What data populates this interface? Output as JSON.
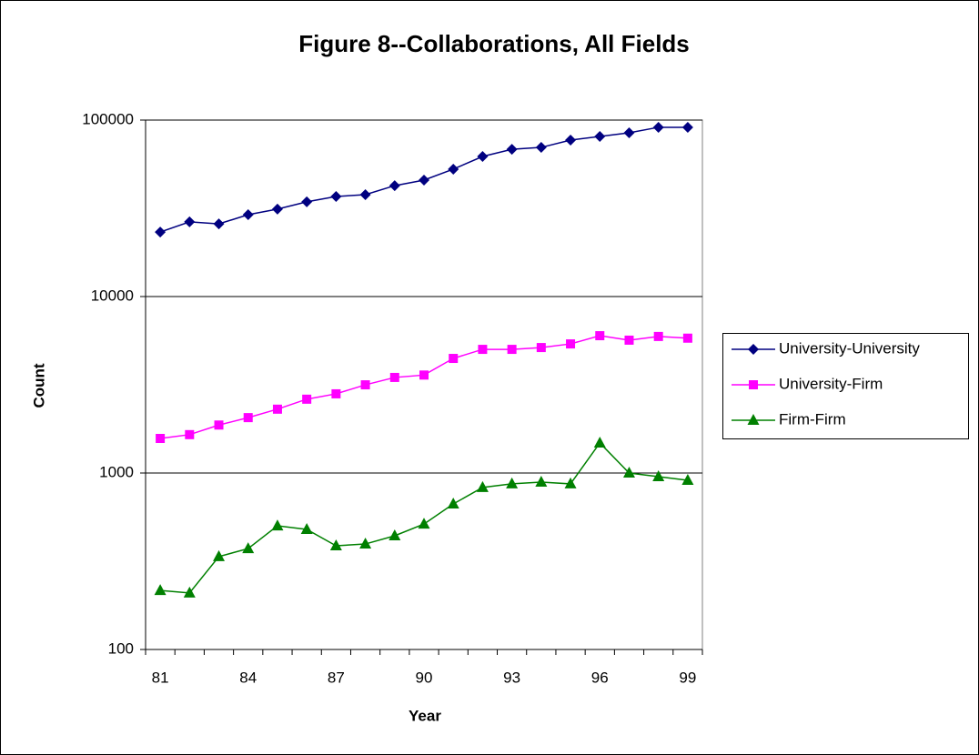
{
  "chart_data": {
    "type": "line",
    "title": "Figure 8--Collaborations, All Fields",
    "x_label": "Year",
    "y_label": "Count",
    "categories": [
      "81",
      null,
      null,
      "84",
      null,
      null,
      "87",
      null,
      null,
      "90",
      null,
      null,
      "93",
      null,
      null,
      "96",
      null,
      null,
      "99"
    ],
    "yscale": "log",
    "ylim": [
      100,
      100000
    ],
    "yticks": [
      100,
      1000,
      10000,
      100000
    ],
    "grid": true,
    "legend": "right",
    "series": [
      {
        "name": "University-University",
        "color": "#000080",
        "marker": "diamond",
        "values": [
          23200,
          26500,
          25800,
          29100,
          31300,
          34400,
          36900,
          37800,
          42500,
          45700,
          52700,
          62200,
          68300,
          70000,
          77000,
          80800,
          84700,
          91000,
          91000
        ]
      },
      {
        "name": "University-Firm",
        "color": "#ff00ff",
        "marker": "square",
        "values": [
          1570,
          1650,
          1870,
          2060,
          2300,
          2620,
          2810,
          3160,
          3480,
          3590,
          4460,
          5020,
          5020,
          5140,
          5390,
          6000,
          5660,
          5940,
          5810
        ]
      },
      {
        "name": "Firm-Firm",
        "color": "#008000",
        "marker": "triangle",
        "values": [
          216,
          209,
          336,
          373,
          502,
          479,
          387,
          396,
          441,
          514,
          668,
          828,
          868,
          888,
          868,
          1480,
          1000,
          953,
          910
        ]
      }
    ]
  }
}
